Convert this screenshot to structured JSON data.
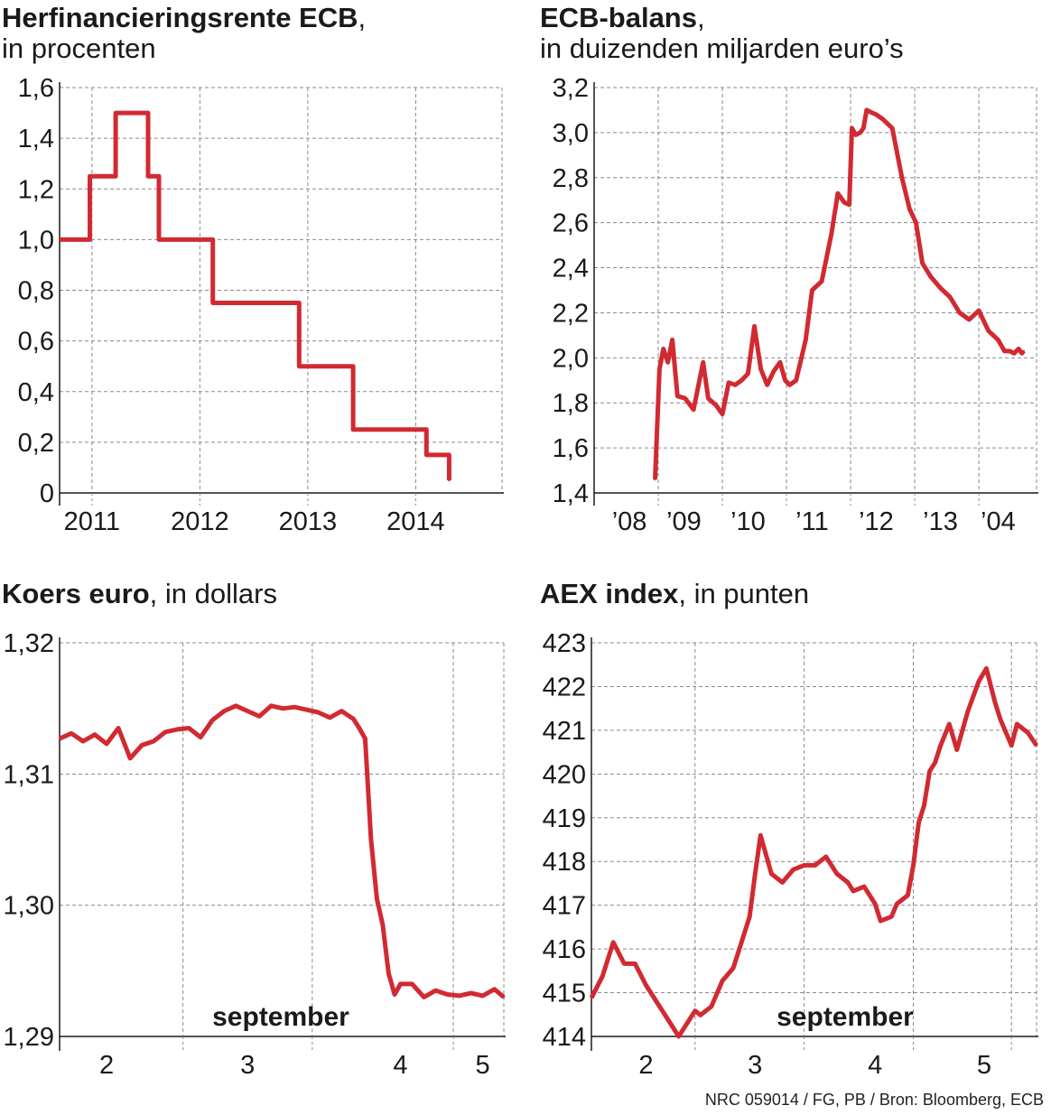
{
  "chart_data": [
    {
      "id": "rente",
      "type": "line",
      "step": true,
      "title": "Herfinancieringsrente ECB",
      "subtitle": "in procenten",
      "ylim": [
        0,
        1.6
      ],
      "yticks": [
        "0",
        "0,2",
        "0,4",
        "0,6",
        "0,8",
        "1,0",
        "1,2",
        "1,4",
        "1,6"
      ],
      "xlim": [
        2010.7,
        2014.8
      ],
      "xticks": [
        "2011",
        "2012",
        "2013",
        "2014"
      ],
      "x": [
        2010.7,
        2010.98,
        2010.98,
        2011.22,
        2011.22,
        2011.52,
        2011.52,
        2011.62,
        2011.62,
        2012.12,
        2012.12,
        2012.92,
        2012.92,
        2013.42,
        2013.42,
        2014.1,
        2014.1,
        2014.31,
        2014.31
      ],
      "y": [
        1.0,
        1.0,
        1.25,
        1.25,
        1.5,
        1.5,
        1.25,
        1.25,
        1.0,
        1.0,
        0.75,
        0.75,
        0.5,
        0.5,
        0.25,
        0.25,
        0.15,
        0.15,
        0.05
      ],
      "grid": true
    },
    {
      "id": "balans",
      "type": "line",
      "title": "ECB-balans",
      "subtitle": "in duizenden miljarden euro’s",
      "ylim": [
        1.4,
        3.2
      ],
      "yticks": [
        "1,4",
        "1,6",
        "1,8",
        "2,0",
        "2,2",
        "2,4",
        "2,6",
        "2,8",
        "3,0",
        "3,2"
      ],
      "xlim": [
        2007.8,
        2014.7
      ],
      "xticks": [
        "’08",
        "’09",
        "’10",
        "’11",
        "’12",
        "’13",
        "’04"
      ],
      "x": [
        2008.75,
        2008.82,
        2008.88,
        2008.95,
        2009.02,
        2009.1,
        2009.22,
        2009.35,
        2009.5,
        2009.58,
        2009.7,
        2009.8,
        2009.9,
        2010.0,
        2010.1,
        2010.2,
        2010.3,
        2010.4,
        2010.5,
        2010.6,
        2010.7,
        2010.78,
        2010.85,
        2010.95,
        2011.1,
        2011.2,
        2011.35,
        2011.5,
        2011.6,
        2011.7,
        2011.78,
        2011.82,
        2011.88,
        2011.95,
        2012.0,
        2012.05,
        2012.12,
        2012.2,
        2012.3,
        2012.45,
        2012.6,
        2012.72,
        2012.82,
        2012.92,
        2013.05,
        2013.2,
        2013.35,
        2013.5,
        2013.65,
        2013.8,
        2013.95,
        2014.1,
        2014.2,
        2014.28,
        2014.35,
        2014.42,
        2014.47,
        2014.5
      ],
      "y": [
        1.46,
        1.95,
        2.04,
        1.98,
        2.08,
        1.83,
        1.82,
        1.77,
        1.98,
        1.82,
        1.79,
        1.75,
        1.89,
        1.88,
        1.9,
        1.93,
        2.14,
        1.95,
        1.88,
        1.94,
        1.98,
        1.9,
        1.88,
        1.9,
        2.08,
        2.3,
        2.34,
        2.55,
        2.73,
        2.69,
        2.68,
        3.02,
        2.99,
        3.0,
        3.02,
        3.1,
        3.09,
        3.08,
        3.06,
        3.02,
        2.8,
        2.66,
        2.6,
        2.42,
        2.36,
        2.31,
        2.27,
        2.2,
        2.17,
        2.21,
        2.12,
        2.08,
        2.03,
        2.03,
        2.02,
        2.04,
        2.02,
        2.03
      ],
      "grid": true
    },
    {
      "id": "koers",
      "type": "line",
      "title": "Koers euro",
      "subtitle": "in dollars",
      "ylim": [
        1.29,
        1.32
      ],
      "yticks": [
        "1,29",
        "1,30",
        "1,31",
        "1,32"
      ],
      "xlim": [
        1.4,
        5.18
      ],
      "xticks": [
        "2",
        "3",
        "4",
        "5"
      ],
      "annotation": "september",
      "x": [
        1.4,
        1.5,
        1.6,
        1.7,
        1.8,
        1.9,
        2.0,
        2.1,
        2.2,
        2.3,
        2.4,
        2.5,
        2.6,
        2.7,
        2.8,
        2.9,
        3.0,
        3.1,
        3.2,
        3.3,
        3.4,
        3.5,
        3.6,
        3.7,
        3.8,
        3.9,
        3.95,
        4.0,
        4.05,
        4.1,
        4.15,
        4.2,
        4.25,
        4.3,
        4.4,
        4.5,
        4.6,
        4.7,
        4.8,
        4.9,
        5.0,
        5.1,
        5.18
      ],
      "y": [
        1.3127,
        1.3131,
        1.3125,
        1.313,
        1.3123,
        1.3135,
        1.3112,
        1.3122,
        1.3125,
        1.3132,
        1.3134,
        1.3135,
        1.3128,
        1.3141,
        1.3148,
        1.3152,
        1.3148,
        1.3144,
        1.3152,
        1.315,
        1.3151,
        1.3149,
        1.3147,
        1.3143,
        1.3148,
        1.3142,
        1.3135,
        1.3127,
        1.305,
        1.3005,
        1.2985,
        1.2948,
        1.2932,
        1.294,
        1.294,
        1.293,
        1.2935,
        1.2932,
        1.2931,
        1.2933,
        1.2931,
        1.2936,
        1.293
      ],
      "grid": true
    },
    {
      "id": "aex",
      "type": "line",
      "title": "AEX index",
      "subtitle": "in punten",
      "ylim": [
        413.8,
        423.0
      ],
      "yticks": [
        "414",
        "415",
        "416",
        "417",
        "418",
        "419",
        "420",
        "421",
        "422",
        "423"
      ],
      "xlim": [
        1.1,
        5.18
      ],
      "xticks": [
        "2",
        "3",
        "4",
        "5"
      ],
      "annotation": "september",
      "x": [
        1.1,
        1.2,
        1.3,
        1.4,
        1.5,
        1.6,
        1.7,
        1.8,
        1.9,
        2.0,
        2.05,
        2.1,
        2.2,
        2.3,
        2.4,
        2.5,
        2.55,
        2.6,
        2.65,
        2.75,
        2.85,
        2.95,
        3.05,
        3.15,
        3.25,
        3.35,
        3.45,
        3.5,
        3.6,
        3.7,
        3.75,
        3.85,
        3.9,
        4.0,
        4.05,
        4.1,
        4.15,
        4.2,
        4.25,
        4.3,
        4.38,
        4.45,
        4.55,
        4.65,
        4.72,
        4.8,
        4.85,
        4.9,
        4.95,
        5.0,
        5.1,
        5.18
      ],
      "y": [
        414.7,
        415.2,
        416.0,
        415.5,
        415.5,
        415.0,
        414.6,
        414.2,
        413.8,
        414.2,
        414.4,
        414.3,
        414.5,
        415.1,
        415.4,
        416.2,
        416.6,
        417.6,
        418.5,
        417.6,
        417.4,
        417.7,
        417.8,
        417.8,
        418.0,
        417.6,
        417.4,
        417.2,
        417.3,
        416.9,
        416.5,
        416.6,
        416.9,
        417.1,
        417.8,
        418.8,
        419.2,
        420.0,
        420.2,
        420.6,
        421.1,
        420.5,
        421.4,
        422.1,
        422.4,
        421.6,
        421.2,
        420.9,
        420.6,
        421.1,
        420.9,
        420.6
      ],
      "grid": true
    }
  ],
  "credit": "NRC 059014 / FG, PB / Bron: Bloomberg, ECB",
  "colors": {
    "line": "#d12a32",
    "grid": "#8a8a8a",
    "axis": "#1a1a1a"
  }
}
